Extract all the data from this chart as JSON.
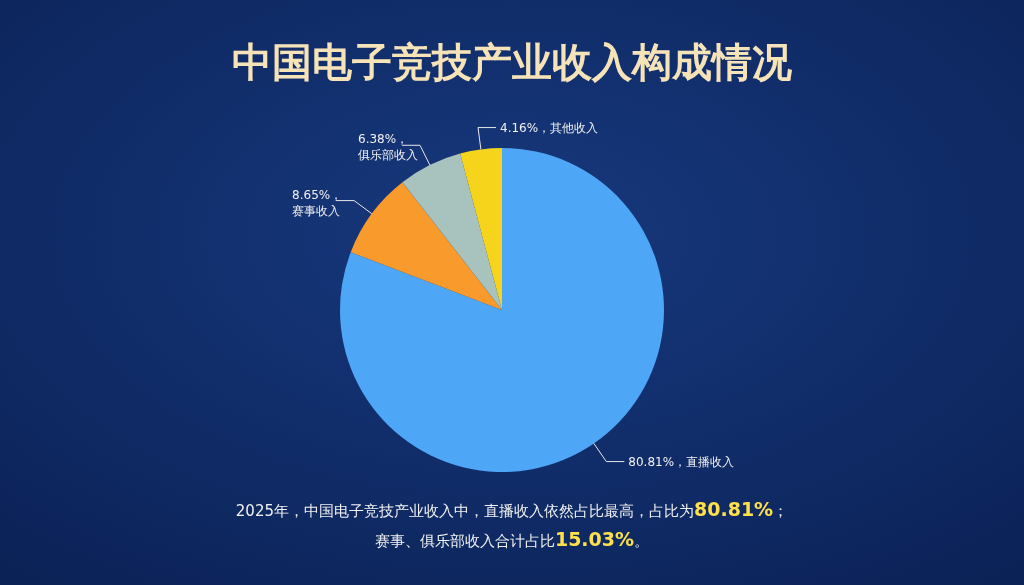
{
  "chart_data": {
    "type": "pie",
    "title": "中国电子竞技产业收入构成情况",
    "categories": [
      "直播收入",
      "赛事收入",
      "俱乐部收入",
      "其他收入"
    ],
    "values": [
      80.81,
      8.65,
      6.38,
      4.16
    ],
    "colors": [
      "#4ea6f7",
      "#f89a2c",
      "#a8c2be",
      "#f6d41c"
    ],
    "value_labels": [
      "80.81%，",
      "8.65%，",
      "6.38%，",
      "4.16%，"
    ],
    "annotations": [
      "2025年，中国电子竞技产业收入中，直播收入依然占比最高，占比为**80.81%**；",
      "赛事、俱乐部收入合计占比**15.03%**。"
    ]
  }
}
